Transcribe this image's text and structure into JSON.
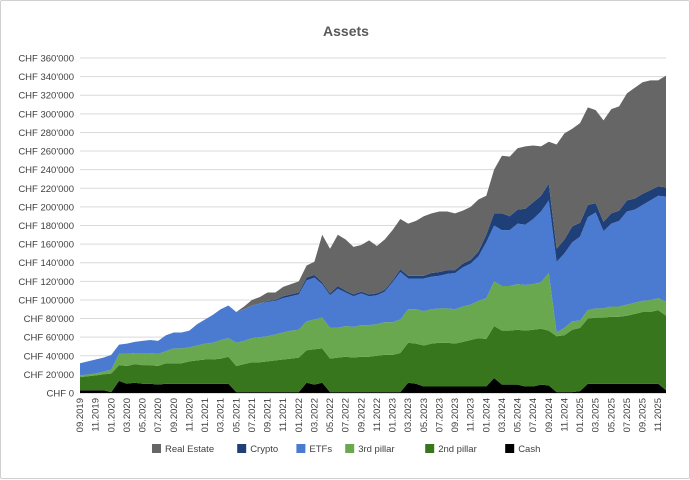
{
  "chart_data": {
    "type": "area",
    "stacked": true,
    "title": "Assets",
    "xlabel": "",
    "ylabel": "",
    "ylim": [
      0,
      360000
    ],
    "y_ticks": [
      {
        "value": 0,
        "label": "CHF 0"
      },
      {
        "value": 20000,
        "label": "CHF 20'000"
      },
      {
        "value": 40000,
        "label": "CHF 40'000"
      },
      {
        "value": 60000,
        "label": "CHF 60'000"
      },
      {
        "value": 80000,
        "label": "CHF 80'000"
      },
      {
        "value": 100000,
        "label": "CHF 100'000"
      },
      {
        "value": 120000,
        "label": "CHF 120'000"
      },
      {
        "value": 140000,
        "label": "CHF 140'000"
      },
      {
        "value": 160000,
        "label": "CHF 160'000"
      },
      {
        "value": 180000,
        "label": "CHF 180'000"
      },
      {
        "value": 200000,
        "label": "CHF 200'000"
      },
      {
        "value": 220000,
        "label": "CHF 220'000"
      },
      {
        "value": 240000,
        "label": "CHF 240'000"
      },
      {
        "value": 260000,
        "label": "CHF 260'000"
      },
      {
        "value": 280000,
        "label": "CHF 280'000"
      },
      {
        "value": 300000,
        "label": "CHF 300'000"
      },
      {
        "value": 320000,
        "label": "CHF 320'000"
      },
      {
        "value": 340000,
        "label": "CHF 340'000"
      },
      {
        "value": 360000,
        "label": "CHF 360'000"
      }
    ],
    "grid": true,
    "legend_position": "bottom",
    "x": [
      "09.2019",
      "10.2019",
      "11.2019",
      "12.2019",
      "01.2020",
      "02.2020",
      "03.2020",
      "04.2020",
      "05.2020",
      "06.2020",
      "07.2020",
      "08.2020",
      "09.2020",
      "10.2020",
      "11.2020",
      "12.2020",
      "01.2021",
      "02.2021",
      "03.2021",
      "04.2021",
      "05.2021",
      "06.2021",
      "07.2021",
      "08.2021",
      "09.2021",
      "10.2021",
      "11.2021",
      "12.2021",
      "01.2022",
      "02.2022",
      "03.2022",
      "04.2022",
      "05.2022",
      "06.2022",
      "07.2022",
      "08.2022",
      "09.2022",
      "10.2022",
      "11.2022",
      "12.2022",
      "01.2023",
      "02.2023",
      "03.2023",
      "04.2023",
      "05.2023",
      "06.2023",
      "07.2023",
      "08.2023",
      "09.2023",
      "10.2023",
      "11.2023",
      "12.2023",
      "01.2024",
      "02.2024",
      "03.2024",
      "04.2024",
      "05.2024",
      "06.2024",
      "07.2024",
      "08.2024",
      "09.2024",
      "10.2024",
      "11.2024",
      "12.2024",
      "01.2025",
      "02.2025",
      "03.2025",
      "04.2025",
      "05.2025",
      "06.2025",
      "07.2025",
      "08.2025",
      "09.2025",
      "10.2025",
      "11.2025",
      "12.2025"
    ],
    "x_tick_labels": [
      "09.2019",
      "11.2019",
      "01.2020",
      "03.2020",
      "05.2020",
      "07.2020",
      "09.2020",
      "11.2020",
      "01.2021",
      "03.2021",
      "05.2021",
      "07.2021",
      "09.2021",
      "11.2021",
      "01.2022",
      "03.2022",
      "05.2022",
      "07.2022",
      "09.2022",
      "11.2022",
      "01.2023",
      "03.2023",
      "05.2023",
      "07.2023",
      "09.2023",
      "11.2023",
      "01.2024",
      "03.2024",
      "05.2024",
      "07.2024",
      "09.2024",
      "11.2024",
      "01.2025",
      "03.2025",
      "05.2025",
      "07.2025",
      "09.2025",
      "11.2025"
    ],
    "series": [
      {
        "name": "Cash",
        "color": "#000000",
        "values": [
          3000,
          3000,
          3000,
          3000,
          1000,
          13000,
          10000,
          11000,
          10000,
          10000,
          9000,
          10000,
          10000,
          10000,
          10000,
          10000,
          10000,
          10000,
          10000,
          10000,
          1000,
          1000,
          1000,
          1000,
          1000,
          1000,
          1000,
          1000,
          1000,
          11000,
          9000,
          11000,
          1000,
          1000,
          1000,
          1000,
          1000,
          1000,
          1000,
          1000,
          1000,
          1000,
          11000,
          10000,
          7000,
          7000,
          7000,
          7000,
          7000,
          7000,
          7000,
          7000,
          7000,
          16000,
          9000,
          9000,
          9000,
          7000,
          7000,
          9000,
          8000,
          1000,
          1000,
          1000,
          2000,
          10000,
          10000,
          10000,
          10000,
          10000,
          10000,
          10000,
          10000,
          10000,
          10000,
          3000
        ]
      },
      {
        "name": "2nd pillar",
        "color": "#38761d",
        "values": [
          14000,
          15000,
          16000,
          17000,
          20000,
          17000,
          19000,
          20000,
          20000,
          20000,
          20000,
          22000,
          22000,
          22000,
          24000,
          25000,
          26000,
          26000,
          27000,
          29000,
          28000,
          30000,
          32000,
          32000,
          33000,
          34000,
          35000,
          36000,
          37000,
          35000,
          38000,
          37000,
          36000,
          37000,
          38000,
          37000,
          38000,
          38000,
          39000,
          40000,
          40000,
          42000,
          43000,
          43000,
          44000,
          46000,
          47000,
          47000,
          46000,
          48000,
          50000,
          52000,
          51000,
          56000,
          58000,
          58000,
          59000,
          60000,
          61000,
          60000,
          59000,
          60000,
          61000,
          67000,
          68000,
          70000,
          71000,
          71000,
          72000,
          72000,
          73000,
          75000,
          77000,
          77000,
          79000,
          80000
        ]
      },
      {
        "name": "3rd pillar",
        "color": "#6aa84f",
        "values": [
          2000,
          2000,
          2000,
          3000,
          4000,
          12000,
          13000,
          12000,
          13000,
          13000,
          13000,
          13000,
          16000,
          16000,
          15000,
          16000,
          17000,
          18000,
          20000,
          20000,
          25000,
          25000,
          26000,
          27000,
          27000,
          28000,
          29000,
          30000,
          30000,
          31000,
          32000,
          33000,
          33000,
          32000,
          33000,
          33000,
          34000,
          34000,
          34000,
          35000,
          35000,
          36000,
          36000,
          37000,
          37000,
          37000,
          37000,
          37000,
          37000,
          38000,
          38000,
          40000,
          44000,
          48000,
          48000,
          48000,
          49000,
          49000,
          49000,
          50000,
          62000,
          4000,
          8000,
          9000,
          8000,
          9000,
          10000,
          10000,
          11000,
          11000,
          12000,
          12000,
          12000,
          13000,
          13000,
          15000
        ]
      },
      {
        "name": "ETFs",
        "color": "#4a7bd1",
        "values": [
          13000,
          14000,
          15000,
          15000,
          16000,
          10000,
          11000,
          12000,
          13000,
          14000,
          14000,
          17000,
          17000,
          17000,
          18000,
          23000,
          26000,
          30000,
          33000,
          35000,
          33000,
          34000,
          35000,
          36000,
          37000,
          36000,
          37000,
          37000,
          38000,
          44000,
          45000,
          36000,
          35000,
          42000,
          36000,
          33000,
          34000,
          31000,
          31000,
          33000,
          43000,
          51000,
          33000,
          33000,
          35000,
          35000,
          35000,
          37000,
          39000,
          42000,
          44000,
          48000,
          60000,
          60000,
          60000,
          60000,
          65000,
          65000,
          70000,
          76000,
          78000,
          76000,
          80000,
          85000,
          90000,
          100000,
          103000,
          83000,
          89000,
          92000,
          100000,
          100000,
          103000,
          107000,
          110000,
          113000
        ]
      },
      {
        "name": "Crypto",
        "color": "#1f3f78",
        "values": [
          0,
          0,
          0,
          0,
          0,
          0,
          0,
          0,
          0,
          0,
          0,
          0,
          0,
          0,
          0,
          0,
          0,
          0,
          0,
          0,
          0,
          0,
          0,
          0,
          1000,
          1000,
          2000,
          2000,
          2000,
          3000,
          3000,
          2000,
          2000,
          3000,
          2000,
          2000,
          2000,
          2000,
          2000,
          2000,
          2000,
          3000,
          3000,
          3000,
          3000,
          4000,
          4000,
          4000,
          3000,
          4000,
          4000,
          5000,
          8000,
          13000,
          18000,
          15000,
          15000,
          17000,
          18000,
          17000,
          18000,
          14000,
          15000,
          17000,
          15000,
          13000,
          10000,
          10000,
          11000,
          11000,
          12000,
          12000,
          12000,
          11000,
          10000,
          10000
        ]
      },
      {
        "name": "Real Estate",
        "color": "#666666",
        "values": [
          0,
          0,
          0,
          0,
          0,
          0,
          0,
          0,
          0,
          0,
          0,
          0,
          0,
          0,
          0,
          0,
          0,
          0,
          0,
          0,
          0,
          0,
          0,
          0,
          0,
          0,
          0,
          0,
          0,
          0,
          0,
          0,
          0,
          0,
          0,
          0,
          0,
          0,
          0,
          0,
          0,
          0,
          0,
          0,
          0,
          0,
          0,
          0,
          0,
          0,
          0,
          0,
          0,
          0,
          0,
          0,
          0,
          0,
          0,
          0,
          0,
          0,
          0,
          0,
          0,
          0,
          0,
          0,
          0,
          0,
          0,
          0,
          0,
          0,
          0,
          0
        ]
      }
    ],
    "totals_top": [
      32000,
      34000,
      36000,
      38000,
      41000,
      52000,
      53000,
      55000,
      56000,
      57000,
      56000,
      62000,
      65000,
      65000,
      67000,
      74000,
      79000,
      84000,
      90000,
      94000,
      87000,
      90000,
      94000,
      96000,
      99000,
      100000,
      104000,
      106000,
      108000,
      124000,
      127000,
      119000,
      107000,
      115000,
      110000,
      106000,
      109000,
      106000,
      107000,
      110000,
      121000,
      132000,
      126000,
      126000,
      126000,
      129000,
      130000,
      132000,
      132000,
      139000,
      143000,
      152000,
      170000,
      193000,
      193000,
      190000,
      197000,
      198000,
      205000,
      212000,
      225000,
      155000,
      165000,
      179000,
      183000,
      202000,
      204000,
      184000,
      193000,
      196000,
      207000,
      209000,
      214000,
      218000,
      222000,
      221000
    ],
    "real_estate_top": [
      32000,
      34000,
      36000,
      38000,
      41000,
      52000,
      53000,
      55000,
      56000,
      57000,
      56000,
      62000,
      65000,
      65000,
      67000,
      74000,
      79000,
      84000,
      90000,
      94000,
      87000,
      93000,
      100000,
      103000,
      108000,
      108000,
      114000,
      117000,
      120000,
      137000,
      141000,
      170000,
      155000,
      170000,
      165000,
      157000,
      159000,
      164000,
      158000,
      165000,
      175000,
      187000,
      182000,
      185000,
      190000,
      193000,
      195000,
      195000,
      193000,
      196000,
      200000,
      208000,
      212000,
      240000,
      255000,
      254000,
      263000,
      265000,
      266000,
      265000,
      270000,
      267000,
      279000,
      284000,
      290000,
      307000,
      304000,
      293000,
      305000,
      308000,
      322000,
      328000,
      334000,
      336000,
      336000,
      341000
    ]
  },
  "legend": [
    {
      "label": "Real Estate",
      "color": "#666666"
    },
    {
      "label": "Crypto",
      "color": "#1f3f78"
    },
    {
      "label": "ETFs",
      "color": "#4a7bd1"
    },
    {
      "label": "3rd pillar",
      "color": "#6aa84f"
    },
    {
      "label": "2nd pillar",
      "color": "#38761d"
    },
    {
      "label": "Cash",
      "color": "#000000"
    }
  ]
}
